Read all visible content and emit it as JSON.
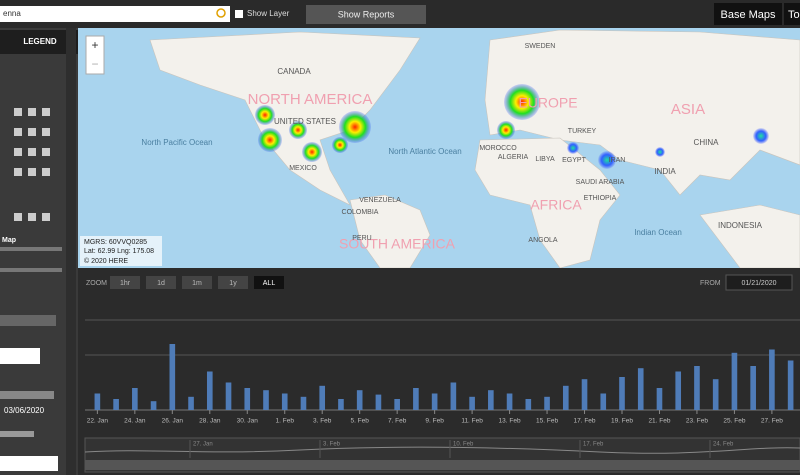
{
  "toolbar": {
    "search": "enna",
    "show_layer": "Show Layer",
    "show_reports": "Show Reports",
    "base_maps": "Base Maps",
    "tools": "To"
  },
  "sidebar": {
    "legend": "LEGEND",
    "map": "Map",
    "date": "03/06/2020"
  },
  "map": {
    "labels": [
      "NORTH AMERICA",
      "EUROPE",
      "ASIA",
      "AFRICA",
      "SOUTH AMERICA",
      "CANADA",
      "UNITED STATES",
      "MEXICO",
      "North Pacific Ocean",
      "North Atlantic Ocean",
      "Indian Ocean",
      "CHINA",
      "INDIA",
      "SWEDEN",
      "TURKEY",
      "ALGERIA",
      "LIBYA",
      "EGYPT",
      "IRAN",
      "SAUDI ARABIA",
      "VENEZUELA",
      "COLOMBIA",
      "PERU",
      "INDONESIA",
      "MOROCCO",
      "ANGOLA",
      "ETHIOPIA"
    ],
    "mgrs": "MGRS: 60VVQ0285",
    "latlng": "Lat: 62.99 Lng: 175.08",
    "copyright": "© 2020 HERE"
  },
  "timeline": {
    "zoom": "ZOOM",
    "ranges": [
      "1hr",
      "1d",
      "1m",
      "1y",
      "ALL"
    ],
    "from_label": "FROM",
    "from_date": "01/21/2020",
    "navigator": [
      "27. Jan",
      "3. Feb",
      "10. Feb",
      "17. Feb",
      "24. Feb"
    ]
  },
  "chart_data": {
    "type": "bar",
    "categories": [
      "22. Jan",
      null,
      "24. Jan",
      null,
      "26. Jan",
      null,
      "28. Jan",
      null,
      "30. Jan",
      null,
      "1. Feb",
      null,
      "3. Feb",
      null,
      "5. Feb",
      null,
      "7. Feb",
      null,
      "9. Feb",
      null,
      "11. Feb",
      null,
      "13. Feb",
      null,
      "15. Feb",
      null,
      "17. Feb",
      null,
      "19. Feb",
      null,
      "21. Feb",
      null,
      "23. Feb",
      null,
      "25. Feb",
      null,
      "27. Feb",
      null
    ],
    "values": [
      15,
      10,
      20,
      8,
      60,
      12,
      35,
      25,
      20,
      18,
      15,
      12,
      22,
      10,
      18,
      14,
      10,
      20,
      15,
      25,
      12,
      18,
      15,
      10,
      12,
      22,
      28,
      15,
      30,
      38,
      20,
      35,
      40,
      28,
      52,
      40,
      55,
      45
    ],
    "color": "#4f7cb8",
    "ylim": [
      0,
      100
    ]
  }
}
